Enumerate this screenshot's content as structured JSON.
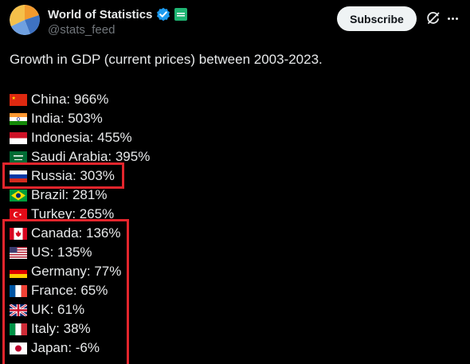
{
  "header": {
    "name": "World of Statistics",
    "handle": "@stats_feed",
    "subscribe_label": "Subscribe",
    "verified_color": "#1d9bf0",
    "affiliate_badge_color": "#1fb573"
  },
  "post": {
    "text": "Growth in GDP (current prices) between 2003-2023."
  },
  "items": [
    {
      "label": "China: 966%",
      "flag": "china-flag"
    },
    {
      "label": "India: 503%",
      "flag": "india-flag"
    },
    {
      "label": "Indonesia: 455%",
      "flag": "indonesia-flag"
    },
    {
      "label": "Saudi Arabia: 395%",
      "flag": "saudi-arabia-flag"
    },
    {
      "label": "Russia: 303%",
      "flag": "russia-flag"
    },
    {
      "label": "Brazil: 281%",
      "flag": "brazil-flag"
    },
    {
      "label": "Turkey: 265%",
      "flag": "turkey-flag"
    },
    {
      "label": "Canada: 136%",
      "flag": "canada-flag"
    },
    {
      "label": "US: 135%",
      "flag": "us-flag"
    },
    {
      "label": "Germany: 77%",
      "flag": "germany-flag"
    },
    {
      "label": "France: 65%",
      "flag": "france-flag"
    },
    {
      "label": "UK: 61%",
      "flag": "uk-flag"
    },
    {
      "label": "Italy: 38%",
      "flag": "italy-flag"
    },
    {
      "label": "Japan: -6%",
      "flag": "japan-flag"
    }
  ],
  "highlight_color": "#e3252c"
}
